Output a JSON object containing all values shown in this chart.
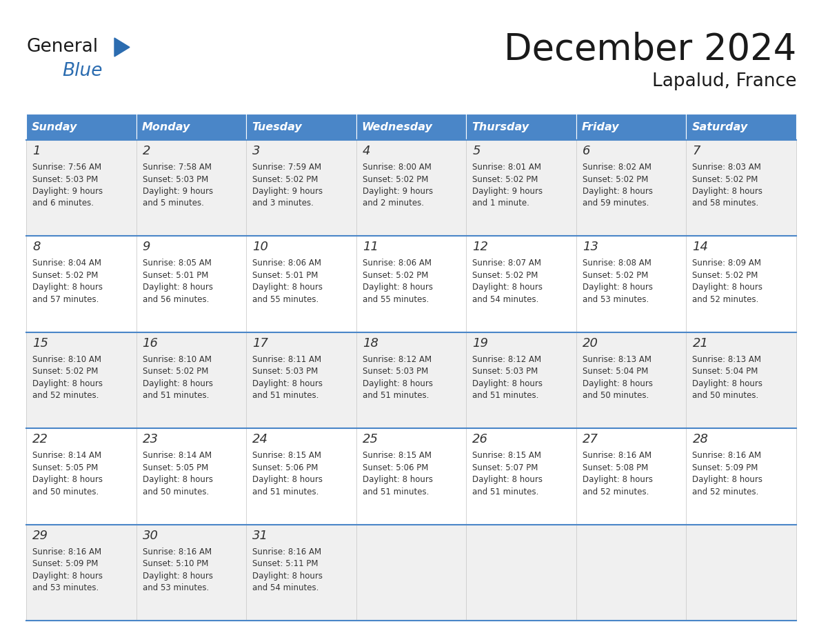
{
  "title": "December 2024",
  "subtitle": "Lapalud, France",
  "header_color": "#4A86C8",
  "header_text_color": "#FFFFFF",
  "cell_bg_white": "#FFFFFF",
  "cell_bg_gray": "#F0F0F0",
  "border_color": "#4A86C8",
  "grid_line_color": "#CCCCCC",
  "text_color": "#333333",
  "days_of_week": [
    "Sunday",
    "Monday",
    "Tuesday",
    "Wednesday",
    "Thursday",
    "Friday",
    "Saturday"
  ],
  "weeks": [
    [
      {
        "day": 1,
        "sunrise": "7:56 AM",
        "sunset": "5:03 PM",
        "daylight_line1": "Daylight: 9 hours",
        "daylight_line2": "and 6 minutes."
      },
      {
        "day": 2,
        "sunrise": "7:58 AM",
        "sunset": "5:03 PM",
        "daylight_line1": "Daylight: 9 hours",
        "daylight_line2": "and 5 minutes."
      },
      {
        "day": 3,
        "sunrise": "7:59 AM",
        "sunset": "5:02 PM",
        "daylight_line1": "Daylight: 9 hours",
        "daylight_line2": "and 3 minutes."
      },
      {
        "day": 4,
        "sunrise": "8:00 AM",
        "sunset": "5:02 PM",
        "daylight_line1": "Daylight: 9 hours",
        "daylight_line2": "and 2 minutes."
      },
      {
        "day": 5,
        "sunrise": "8:01 AM",
        "sunset": "5:02 PM",
        "daylight_line1": "Daylight: 9 hours",
        "daylight_line2": "and 1 minute."
      },
      {
        "day": 6,
        "sunrise": "8:02 AM",
        "sunset": "5:02 PM",
        "daylight_line1": "Daylight: 8 hours",
        "daylight_line2": "and 59 minutes."
      },
      {
        "day": 7,
        "sunrise": "8:03 AM",
        "sunset": "5:02 PM",
        "daylight_line1": "Daylight: 8 hours",
        "daylight_line2": "and 58 minutes."
      }
    ],
    [
      {
        "day": 8,
        "sunrise": "8:04 AM",
        "sunset": "5:02 PM",
        "daylight_line1": "Daylight: 8 hours",
        "daylight_line2": "and 57 minutes."
      },
      {
        "day": 9,
        "sunrise": "8:05 AM",
        "sunset": "5:01 PM",
        "daylight_line1": "Daylight: 8 hours",
        "daylight_line2": "and 56 minutes."
      },
      {
        "day": 10,
        "sunrise": "8:06 AM",
        "sunset": "5:01 PM",
        "daylight_line1": "Daylight: 8 hours",
        "daylight_line2": "and 55 minutes."
      },
      {
        "day": 11,
        "sunrise": "8:06 AM",
        "sunset": "5:02 PM",
        "daylight_line1": "Daylight: 8 hours",
        "daylight_line2": "and 55 minutes."
      },
      {
        "day": 12,
        "sunrise": "8:07 AM",
        "sunset": "5:02 PM",
        "daylight_line1": "Daylight: 8 hours",
        "daylight_line2": "and 54 minutes."
      },
      {
        "day": 13,
        "sunrise": "8:08 AM",
        "sunset": "5:02 PM",
        "daylight_line1": "Daylight: 8 hours",
        "daylight_line2": "and 53 minutes."
      },
      {
        "day": 14,
        "sunrise": "8:09 AM",
        "sunset": "5:02 PM",
        "daylight_line1": "Daylight: 8 hours",
        "daylight_line2": "and 52 minutes."
      }
    ],
    [
      {
        "day": 15,
        "sunrise": "8:10 AM",
        "sunset": "5:02 PM",
        "daylight_line1": "Daylight: 8 hours",
        "daylight_line2": "and 52 minutes."
      },
      {
        "day": 16,
        "sunrise": "8:10 AM",
        "sunset": "5:02 PM",
        "daylight_line1": "Daylight: 8 hours",
        "daylight_line2": "and 51 minutes."
      },
      {
        "day": 17,
        "sunrise": "8:11 AM",
        "sunset": "5:03 PM",
        "daylight_line1": "Daylight: 8 hours",
        "daylight_line2": "and 51 minutes."
      },
      {
        "day": 18,
        "sunrise": "8:12 AM",
        "sunset": "5:03 PM",
        "daylight_line1": "Daylight: 8 hours",
        "daylight_line2": "and 51 minutes."
      },
      {
        "day": 19,
        "sunrise": "8:12 AM",
        "sunset": "5:03 PM",
        "daylight_line1": "Daylight: 8 hours",
        "daylight_line2": "and 51 minutes."
      },
      {
        "day": 20,
        "sunrise": "8:13 AM",
        "sunset": "5:04 PM",
        "daylight_line1": "Daylight: 8 hours",
        "daylight_line2": "and 50 minutes."
      },
      {
        "day": 21,
        "sunrise": "8:13 AM",
        "sunset": "5:04 PM",
        "daylight_line1": "Daylight: 8 hours",
        "daylight_line2": "and 50 minutes."
      }
    ],
    [
      {
        "day": 22,
        "sunrise": "8:14 AM",
        "sunset": "5:05 PM",
        "daylight_line1": "Daylight: 8 hours",
        "daylight_line2": "and 50 minutes."
      },
      {
        "day": 23,
        "sunrise": "8:14 AM",
        "sunset": "5:05 PM",
        "daylight_line1": "Daylight: 8 hours",
        "daylight_line2": "and 50 minutes."
      },
      {
        "day": 24,
        "sunrise": "8:15 AM",
        "sunset": "5:06 PM",
        "daylight_line1": "Daylight: 8 hours",
        "daylight_line2": "and 51 minutes."
      },
      {
        "day": 25,
        "sunrise": "8:15 AM",
        "sunset": "5:06 PM",
        "daylight_line1": "Daylight: 8 hours",
        "daylight_line2": "and 51 minutes."
      },
      {
        "day": 26,
        "sunrise": "8:15 AM",
        "sunset": "5:07 PM",
        "daylight_line1": "Daylight: 8 hours",
        "daylight_line2": "and 51 minutes."
      },
      {
        "day": 27,
        "sunrise": "8:16 AM",
        "sunset": "5:08 PM",
        "daylight_line1": "Daylight: 8 hours",
        "daylight_line2": "and 52 minutes."
      },
      {
        "day": 28,
        "sunrise": "8:16 AM",
        "sunset": "5:09 PM",
        "daylight_line1": "Daylight: 8 hours",
        "daylight_line2": "and 52 minutes."
      }
    ],
    [
      {
        "day": 29,
        "sunrise": "8:16 AM",
        "sunset": "5:09 PM",
        "daylight_line1": "Daylight: 8 hours",
        "daylight_line2": "and 53 minutes."
      },
      {
        "day": 30,
        "sunrise": "8:16 AM",
        "sunset": "5:10 PM",
        "daylight_line1": "Daylight: 8 hours",
        "daylight_line2": "and 53 minutes."
      },
      {
        "day": 31,
        "sunrise": "8:16 AM",
        "sunset": "5:11 PM",
        "daylight_line1": "Daylight: 8 hours",
        "daylight_line2": "and 54 minutes."
      },
      null,
      null,
      null,
      null
    ]
  ],
  "logo_color_general": "#1a1a1a",
  "logo_color_blue": "#2B6CB0",
  "logo_triangle_color": "#2B6CB0"
}
